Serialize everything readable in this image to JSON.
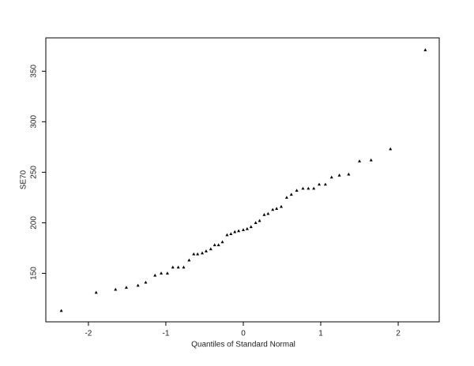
{
  "chart_data": {
    "type": "scatter",
    "xlabel": "Quantiles of Standard Normal",
    "ylabel": "SE70",
    "color": "#000000",
    "x": [
      -2.35,
      -1.9,
      -1.65,
      -1.51,
      -1.36,
      -1.26,
      -1.14,
      -1.06,
      -0.98,
      -0.91,
      -0.84,
      -0.77,
      -0.7,
      -0.64,
      -0.59,
      -0.53,
      -0.48,
      -0.42,
      -0.37,
      -0.32,
      -0.27,
      -0.21,
      -0.16,
      -0.11,
      -0.06,
      0,
      0.05,
      0.1,
      0.16,
      0.21,
      0.27,
      0.32,
      0.38,
      0.43,
      0.49,
      0.56,
      0.62,
      0.69,
      0.77,
      0.84,
      0.91,
      0.98,
      1.06,
      1.14,
      1.24,
      1.36,
      1.5,
      1.65,
      1.9,
      2.35
    ],
    "values": [
      113,
      131,
      134,
      136,
      138,
      141,
      148,
      150,
      150,
      156,
      156,
      156,
      163,
      169,
      169,
      170,
      172,
      174,
      178,
      178,
      181,
      188,
      189,
      191,
      192,
      193,
      194,
      196,
      200,
      202,
      208,
      209,
      213,
      214,
      216,
      225,
      228,
      232,
      234,
      234,
      234,
      238,
      238,
      245,
      247,
      248,
      261,
      262,
      273,
      371
    ],
    "xlim": [
      -2.55,
      2.53
    ],
    "ylim": [
      102,
      383
    ],
    "xticks": [
      -2,
      -1,
      0,
      1,
      2
    ],
    "yticks": [
      150,
      200,
      250,
      300,
      350
    ]
  }
}
